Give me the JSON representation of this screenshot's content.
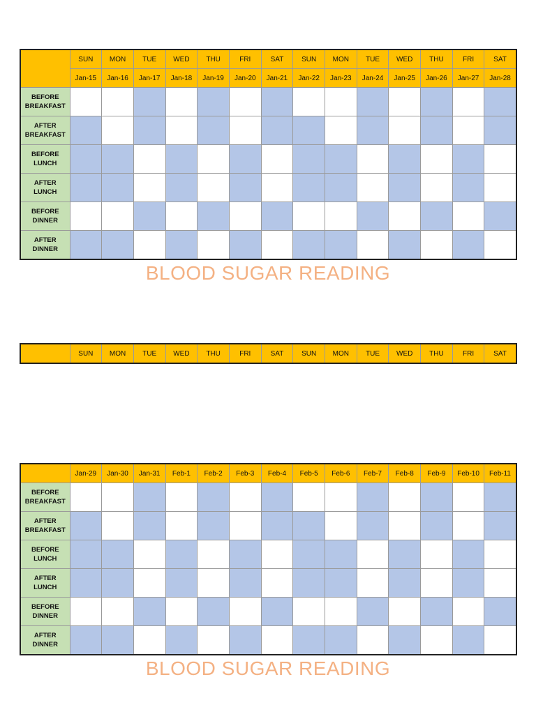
{
  "days": [
    "SUN",
    "MON",
    "TUE",
    "WED",
    "THU",
    "FRI",
    "SAT",
    "SUN",
    "MON",
    "TUE",
    "WED",
    "THU",
    "FRI",
    "SAT"
  ],
  "dates_week1": [
    "Jan-15",
    "Jan-16",
    "Jan-17",
    "Jan-18",
    "Jan-19",
    "Jan-20",
    "Jan-21",
    "Jan-22",
    "Jan-23",
    "Jan-24",
    "Jan-25",
    "Jan-26",
    "Jan-27",
    "Jan-28"
  ],
  "dates_week2": [
    "Jan-29",
    "Jan-30",
    "Jan-31",
    "Feb-1",
    "Feb-2",
    "Feb-3",
    "Feb-4",
    "Feb-5",
    "Feb-6",
    "Feb-7",
    "Feb-8",
    "Feb-9",
    "Feb-10",
    "Feb-11"
  ],
  "row_labels": [
    [
      "BEFORE",
      "BREAKFAST"
    ],
    [
      "AFTER",
      "BREAKFAST"
    ],
    [
      "BEFORE",
      "LUNCH"
    ],
    [
      "AFTER",
      "LUNCH"
    ],
    [
      "BEFORE",
      "DINNER"
    ],
    [
      "AFTER",
      "DINNER"
    ]
  ],
  "shading": [
    [
      0,
      0,
      1,
      0,
      1,
      0,
      1,
      0,
      0,
      1,
      0,
      1,
      0,
      1
    ],
    [
      1,
      0,
      1,
      0,
      1,
      0,
      1,
      1,
      0,
      1,
      0,
      1,
      0,
      1
    ],
    [
      1,
      1,
      0,
      1,
      0,
      1,
      0,
      1,
      1,
      0,
      1,
      0,
      1,
      0
    ],
    [
      1,
      1,
      0,
      1,
      0,
      1,
      0,
      1,
      1,
      0,
      1,
      0,
      1,
      0
    ],
    [
      0,
      0,
      1,
      0,
      1,
      0,
      1,
      0,
      0,
      1,
      0,
      1,
      0,
      1
    ],
    [
      1,
      1,
      0,
      1,
      0,
      1,
      0,
      1,
      1,
      0,
      1,
      0,
      1,
      0
    ]
  ],
  "title": "BLOOD SUGAR READING",
  "colors": {
    "header": "#ffc000",
    "label_cell": "#c6e0b4",
    "shaded_cell": "#b4c6e7",
    "title": "#f4b183"
  }
}
